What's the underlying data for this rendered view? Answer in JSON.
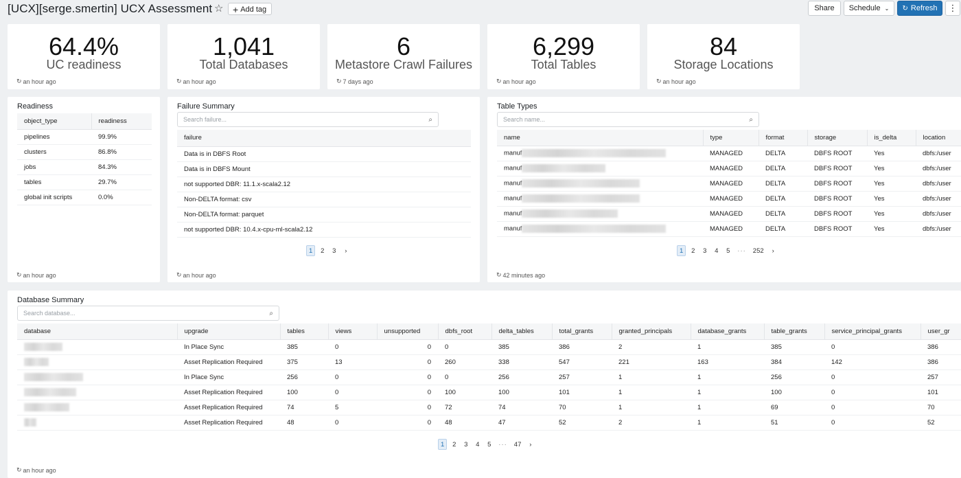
{
  "header": {
    "title": "[UCX][serge.smertin] UCX Assessment",
    "add_tag": "Add tag",
    "share": "Share",
    "schedule": "Schedule",
    "refresh": "Refresh"
  },
  "counters": [
    {
      "value": "64.4%",
      "label": "UC readiness",
      "updated": "an hour ago"
    },
    {
      "value": "1,041",
      "label": "Total Databases",
      "updated": "an hour ago"
    },
    {
      "value": "6",
      "label": "Metastore Crawl Failures",
      "updated": "7 days ago"
    },
    {
      "value": "6,299",
      "label": "Total Tables",
      "updated": "an hour ago"
    },
    {
      "value": "84",
      "label": "Storage Locations",
      "updated": "an hour ago"
    }
  ],
  "readiness": {
    "title": "Readiness",
    "columns": [
      "object_type",
      "readiness"
    ],
    "rows": [
      [
        "pipelines",
        "99.9%"
      ],
      [
        "clusters",
        "86.8%"
      ],
      [
        "jobs",
        "84.3%"
      ],
      [
        "tables",
        "29.7%"
      ],
      [
        "global init scripts",
        "0.0%"
      ]
    ],
    "updated": "an hour ago"
  },
  "failure_summary": {
    "title": "Failure Summary",
    "search_placeholder": "Search failure...",
    "column": "failure",
    "rows": [
      "Data is in DBFS Root",
      "Data is in DBFS Mount",
      "not supported DBR: 11.1.x-scala2.12",
      "Non-DELTA format: csv",
      "Non-DELTA format: parquet",
      "not supported DBR: 10.4.x-cpu-ml-scala2.12"
    ],
    "pages": [
      "1",
      "2",
      "3"
    ],
    "updated": "an hour ago"
  },
  "table_types": {
    "title": "Table Types",
    "search_placeholder": "Search name...",
    "columns": [
      "name",
      "type",
      "format",
      "storage",
      "is_delta",
      "location"
    ],
    "rows": [
      [
        "manuf",
        "MANAGED",
        "DELTA",
        "DBFS ROOT",
        "Yes",
        "dbfs:/user"
      ],
      [
        "manuf",
        "MANAGED",
        "DELTA",
        "DBFS ROOT",
        "Yes",
        "dbfs:/user"
      ],
      [
        "manuf",
        "MANAGED",
        "DELTA",
        "DBFS ROOT",
        "Yes",
        "dbfs:/user"
      ],
      [
        "manuf",
        "MANAGED",
        "DELTA",
        "DBFS ROOT",
        "Yes",
        "dbfs:/user"
      ],
      [
        "manuf",
        "MANAGED",
        "DELTA",
        "DBFS ROOT",
        "Yes",
        "dbfs:/user"
      ],
      [
        "manuf",
        "MANAGED",
        "DELTA",
        "DBFS ROOT",
        "Yes",
        "dbfs:/user"
      ]
    ],
    "pages": [
      "1",
      "2",
      "3",
      "4",
      "5",
      "252"
    ],
    "updated": "42 minutes ago"
  },
  "database_summary": {
    "title": "Database Summary",
    "search_placeholder": "Search database...",
    "columns": [
      "database",
      "upgrade",
      "tables",
      "views",
      "unsupported",
      "dbfs_root",
      "delta_tables",
      "total_grants",
      "granted_principals",
      "database_grants",
      "table_grants",
      "service_principal_grants",
      "user_gr"
    ],
    "rows": [
      [
        "",
        "In Place Sync",
        "385",
        "0",
        "0",
        "0",
        "385",
        "386",
        "2",
        "1",
        "385",
        "0",
        "386"
      ],
      [
        "",
        "Asset Replication Required",
        "375",
        "13",
        "0",
        "260",
        "338",
        "547",
        "221",
        "163",
        "384",
        "142",
        "386"
      ],
      [
        "",
        "In Place Sync",
        "256",
        "0",
        "0",
        "0",
        "256",
        "257",
        "1",
        "1",
        "256",
        "0",
        "257"
      ],
      [
        "",
        "Asset Replication Required",
        "100",
        "0",
        "0",
        "100",
        "100",
        "101",
        "1",
        "1",
        "100",
        "0",
        "101"
      ],
      [
        "",
        "Asset Replication Required",
        "74",
        "5",
        "0",
        "72",
        "74",
        "70",
        "1",
        "1",
        "69",
        "0",
        "70"
      ],
      [
        "",
        "Asset Replication Required",
        "48",
        "0",
        "0",
        "48",
        "47",
        "52",
        "2",
        "1",
        "51",
        "0",
        "52"
      ]
    ],
    "pages": [
      "1",
      "2",
      "3",
      "4",
      "5",
      "47"
    ],
    "updated": "an hour ago"
  },
  "colors": {
    "accent": "#2272b4",
    "background": "#eef0f2"
  }
}
